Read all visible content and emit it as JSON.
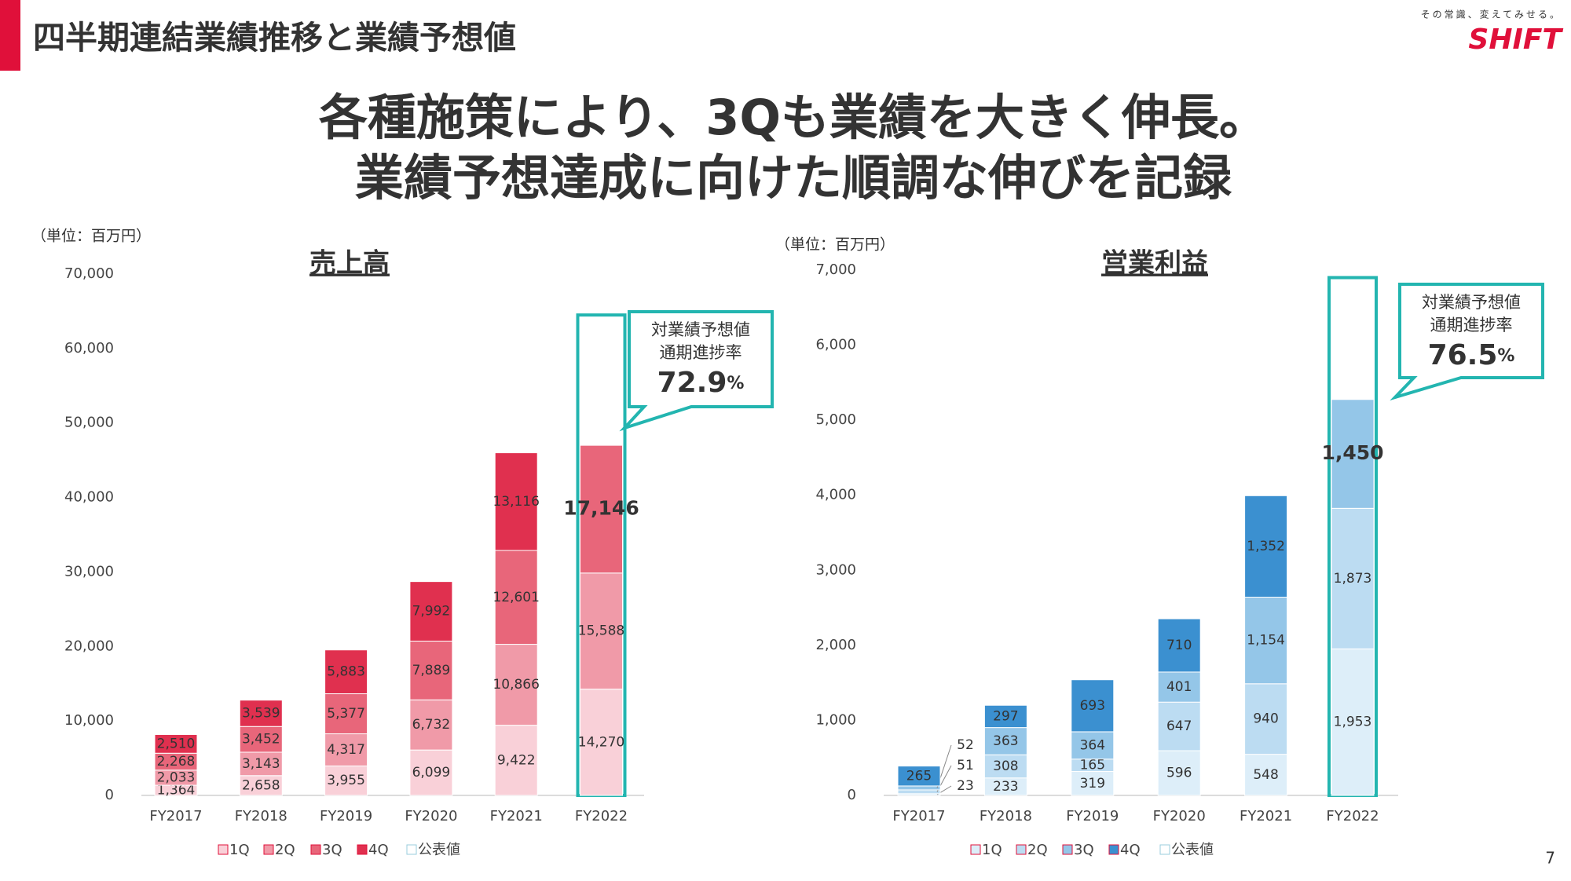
{
  "header": {
    "title": "四半期連結業績推移と業績予想値",
    "logo_tagline": "その常識、変えてみせる。",
    "logo": "SHIFT",
    "headline": [
      "各種施策により、3Qも業績を大きく伸長。",
      "業績予想達成に向けた順調な伸びを記録"
    ],
    "page_number": "7"
  },
  "chart_data": [
    {
      "type": "bar",
      "stacked": true,
      "title": "売上高",
      "unit_label": "（単位：百万円）",
      "categories": [
        "FY2017",
        "FY2018",
        "FY2019",
        "FY2020",
        "FY2021",
        "FY2022"
      ],
      "series": [
        {
          "name": "1Q",
          "color": "#f9d0d8",
          "values": [
            1364,
            2658,
            3955,
            6099,
            9422,
            14270
          ],
          "value_labels": [
            "1,364",
            "2,658",
            "3,955",
            "6,099",
            "9,422",
            "14,270"
          ]
        },
        {
          "name": "2Q",
          "color": "#f09aa8",
          "values": [
            2033,
            3143,
            4317,
            6732,
            10866,
            15588
          ],
          "value_labels": [
            "2,033",
            "3,143",
            "4,317",
            "6,732",
            "10,866",
            "15,588"
          ]
        },
        {
          "name": "3Q",
          "color": "#e8667a",
          "values": [
            2268,
            3452,
            5377,
            7889,
            12601,
            17146
          ],
          "value_labels": [
            "2,268",
            "3,452",
            "5,377",
            "7,889",
            "12,601",
            "17,146"
          ]
        },
        {
          "name": "4Q",
          "color": "#e0304f",
          "values": [
            2510,
            3539,
            5883,
            7992,
            13116,
            null
          ],
          "value_labels": [
            "2,510",
            "3,539",
            "5,883",
            "7,992",
            "13,116",
            null
          ]
        }
      ],
      "forecast": {
        "name": "公表値",
        "color": "#ffffff",
        "outline": "#23b5b0",
        "values": [
          null,
          null,
          null,
          null,
          null,
          64500
        ]
      },
      "callout": {
        "lines": [
          "対業績予想値",
          "通期進捗率"
        ],
        "value": 72.9,
        "unit": "%"
      },
      "ylim": [
        0,
        70000
      ],
      "yticks": [
        0,
        {
          "value": 10000,
          "label": "10,000"
        },
        {
          "value": 20000,
          "label": "20,000"
        },
        {
          "value": 30000,
          "label": "30,000"
        },
        {
          "value": 40000,
          "label": "40,000"
        },
        {
          "value": 50000,
          "label": "50,000"
        },
        {
          "value": 60000,
          "label": "60,000"
        },
        {
          "value": 70000,
          "label": "70,000"
        }
      ],
      "grid": false
    },
    {
      "type": "bar",
      "stacked": true,
      "title": "営業利益",
      "unit_label": "（単位：百万円）",
      "categories": [
        "FY2017",
        "FY2018",
        "FY2019",
        "FY2020",
        "FY2021",
        "FY2022"
      ],
      "series": [
        {
          "name": "1Q",
          "color": "#ddeef9",
          "values": [
            23,
            233,
            319,
            596,
            548,
            1953
          ],
          "value_labels": [
            "23",
            "233",
            "319",
            "596",
            "548",
            "1,953"
          ]
        },
        {
          "name": "2Q",
          "color": "#bcdcf2",
          "values": [
            51,
            308,
            165,
            647,
            940,
            1873
          ],
          "value_labels": [
            "51",
            "308",
            "165",
            "647",
            "940",
            "1,873"
          ]
        },
        {
          "name": "3Q",
          "color": "#94c6e8",
          "values": [
            52,
            363,
            364,
            401,
            1154,
            1450
          ],
          "value_labels": [
            "52",
            "363",
            "364",
            "401",
            "1,154",
            "1,450"
          ]
        },
        {
          "name": "4Q",
          "color": "#3b90d0",
          "values": [
            265,
            297,
            693,
            710,
            1352,
            null
          ],
          "value_labels": [
            "265",
            "297",
            "693",
            "710",
            "1,352",
            null
          ]
        }
      ],
      "forecast": {
        "name": "公表値",
        "color": "#ffffff",
        "outline": "#23b5b0",
        "values": [
          null,
          null,
          null,
          null,
          null,
          6900
        ]
      },
      "callout": {
        "lines": [
          "対業績予想値",
          "通期進捗率"
        ],
        "value": 76.5,
        "unit": "%"
      },
      "ylim": [
        0,
        7000
      ],
      "yticks": [
        0,
        {
          "value": 1000,
          "label": "1,000"
        },
        {
          "value": 2000,
          "label": "2,000"
        },
        {
          "value": 3000,
          "label": "3,000"
        },
        {
          "value": 4000,
          "label": "4,000"
        },
        {
          "value": 5000,
          "label": "5,000"
        },
        {
          "value": 6000,
          "label": "6,000"
        },
        {
          "value": 7000,
          "label": "7,000"
        }
      ],
      "grid": false
    }
  ]
}
